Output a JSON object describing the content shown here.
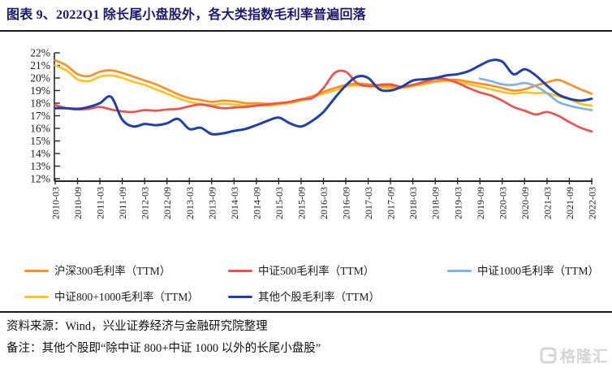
{
  "title": "图表 9、2022Q1 除长尾小盘股外，各大类指数毛利率普遍回落",
  "source_line": "资料来源：Wind，兴业证券经济与金融研究院整理",
  "note_line": "备注：其他个股即“除中证 800+中证 1000 以外的长尾小盘股”",
  "watermark": {
    "icon": "gelonghui-logo",
    "text": "格隆汇",
    "color": "#d5d5d5"
  },
  "colors": {
    "title": "#18186E",
    "rule": "#1a1a1a",
    "axis": "#262626",
    "tick_text": "#1a1a1a"
  },
  "chart_data": {
    "type": "line",
    "x": [
      "2010-03",
      "2010-06",
      "2010-09",
      "2010-12",
      "2011-03",
      "2011-06",
      "2011-09",
      "2011-12",
      "2012-03",
      "2012-06",
      "2012-09",
      "2012-12",
      "2013-03",
      "2013-06",
      "2013-09",
      "2013-12",
      "2014-03",
      "2014-06",
      "2014-09",
      "2014-12",
      "2015-03",
      "2015-06",
      "2015-09",
      "2015-12",
      "2016-03",
      "2016-06",
      "2016-09",
      "2016-12",
      "2017-03",
      "2017-06",
      "2017-09",
      "2017-12",
      "2018-03",
      "2018-06",
      "2018-09",
      "2018-12",
      "2019-03",
      "2019-06",
      "2019-09",
      "2019-12",
      "2020-03",
      "2020-06",
      "2020-09",
      "2020-12",
      "2021-03",
      "2021-06",
      "2021-09",
      "2021-12",
      "2022-03"
    ],
    "x_tick_labels": [
      "2010-03",
      "2010-09",
      "2011-03",
      "2011-09",
      "2012-03",
      "2012-09",
      "2013-03",
      "2013-09",
      "2014-03",
      "2014-09",
      "2015-03",
      "2015-09",
      "2016-03",
      "2016-09",
      "2017-03",
      "2017-09",
      "2018-03",
      "2018-09",
      "2019-03",
      "2019-09",
      "2020-03",
      "2020-09",
      "2021-03",
      "2021-09",
      "2022-03"
    ],
    "ylim": [
      12,
      22
    ],
    "y_ticks": [
      22,
      21,
      20,
      19,
      18,
      17,
      16,
      15,
      14,
      13,
      12
    ],
    "y_suffix": "%",
    "grid": false,
    "legend_position": "bottom",
    "series": [
      {
        "name": "沪深300毛利率（TTM）",
        "color": "#F5912E",
        "values": [
          21.4,
          21.0,
          20.3,
          20.15,
          20.5,
          20.6,
          20.4,
          20.1,
          19.8,
          19.5,
          19.1,
          18.7,
          18.4,
          18.25,
          18.1,
          18.2,
          18.15,
          18.0,
          18.0,
          17.95,
          18.0,
          18.1,
          18.3,
          18.55,
          18.9,
          19.2,
          19.45,
          19.55,
          19.5,
          19.4,
          19.35,
          19.3,
          19.45,
          19.6,
          19.75,
          19.85,
          19.85,
          19.7,
          19.55,
          19.4,
          19.2,
          19.0,
          19.1,
          19.4,
          19.65,
          19.85,
          19.5,
          19.1,
          18.75
        ]
      },
      {
        "name": "中证500毛利率（TTM）",
        "color": "#E8524F",
        "values": [
          17.85,
          17.6,
          17.5,
          17.55,
          17.7,
          17.5,
          17.35,
          17.3,
          17.45,
          17.4,
          17.5,
          17.55,
          17.75,
          17.9,
          17.75,
          17.6,
          17.65,
          17.7,
          17.8,
          17.9,
          18.0,
          18.1,
          18.3,
          18.4,
          19.2,
          20.4,
          20.5,
          19.6,
          19.35,
          19.45,
          19.5,
          19.3,
          19.45,
          19.7,
          19.95,
          19.9,
          19.6,
          19.2,
          18.85,
          18.6,
          18.2,
          17.7,
          17.4,
          17.1,
          17.3,
          17.0,
          16.5,
          16.05,
          15.75
        ]
      },
      {
        "name": "中证1000毛利率（TTM）",
        "color": "#7FB2E5",
        "values": [
          null,
          null,
          null,
          null,
          null,
          null,
          null,
          null,
          null,
          null,
          null,
          null,
          null,
          null,
          null,
          null,
          null,
          null,
          null,
          null,
          null,
          null,
          null,
          null,
          null,
          null,
          null,
          null,
          null,
          null,
          null,
          null,
          null,
          null,
          null,
          null,
          null,
          null,
          19.95,
          19.75,
          19.5,
          19.45,
          19.6,
          19.35,
          18.8,
          18.1,
          17.8,
          17.6,
          17.45
        ]
      },
      {
        "name": "中证800+1000毛利率（TTM）",
        "color": "#FFC222",
        "values": [
          21.0,
          20.6,
          19.9,
          19.75,
          20.1,
          20.2,
          20.0,
          19.7,
          19.45,
          19.1,
          18.75,
          18.4,
          18.1,
          17.95,
          17.85,
          17.95,
          17.9,
          17.8,
          17.85,
          17.8,
          17.9,
          18.0,
          18.2,
          18.45,
          18.75,
          19.0,
          19.3,
          19.4,
          19.35,
          19.25,
          19.2,
          19.2,
          19.35,
          19.5,
          19.7,
          19.75,
          19.7,
          19.5,
          19.3,
          19.1,
          18.9,
          18.75,
          18.85,
          18.8,
          18.8,
          18.55,
          18.3,
          17.95,
          17.8
        ]
      },
      {
        "name": "其他个股毛利率（TTM）",
        "color": "#2140A3",
        "values": [
          17.6,
          17.6,
          17.55,
          17.7,
          18.0,
          18.5,
          16.7,
          16.15,
          16.35,
          16.25,
          16.4,
          16.75,
          15.95,
          16.05,
          15.55,
          15.6,
          15.8,
          15.95,
          16.25,
          16.6,
          16.85,
          16.4,
          16.15,
          16.6,
          17.3,
          18.4,
          19.4,
          20.1,
          20.0,
          19.1,
          19.0,
          19.3,
          19.8,
          19.9,
          20.0,
          20.2,
          20.3,
          20.55,
          21.0,
          21.4,
          21.3,
          20.3,
          20.7,
          20.2,
          19.4,
          18.7,
          18.35,
          18.2,
          18.35
        ]
      }
    ]
  }
}
